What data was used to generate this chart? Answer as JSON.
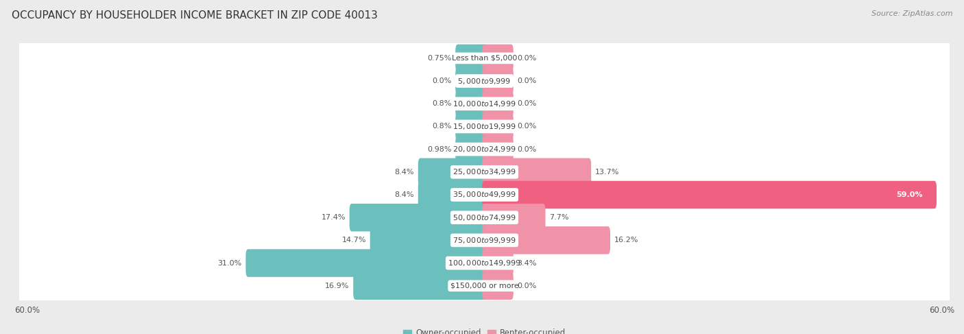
{
  "title": "OCCUPANCY BY HOUSEHOLDER INCOME BRACKET IN ZIP CODE 40013",
  "source": "Source: ZipAtlas.com",
  "categories": [
    "Less than $5,000",
    "$5,000 to $9,999",
    "$10,000 to $14,999",
    "$15,000 to $19,999",
    "$20,000 to $24,999",
    "$25,000 to $34,999",
    "$35,000 to $49,999",
    "$50,000 to $74,999",
    "$75,000 to $99,999",
    "$100,000 to $149,999",
    "$150,000 or more"
  ],
  "owner_values": [
    0.75,
    0.0,
    0.8,
    0.8,
    0.98,
    8.4,
    8.4,
    17.4,
    14.7,
    31.0,
    16.9
  ],
  "renter_values": [
    0.0,
    0.0,
    0.0,
    0.0,
    0.0,
    13.7,
    59.0,
    7.7,
    16.2,
    3.4,
    0.0
  ],
  "owner_color": "#6BBFBC",
  "renter_color": "#F093A8",
  "renter_color_bright": "#F06080",
  "axis_max": 60.0,
  "min_bar": 3.5,
  "title_fontsize": 11,
  "source_fontsize": 8,
  "label_fontsize": 8,
  "category_fontsize": 8,
  "legend_fontsize": 8.5,
  "bottom_label": "60.0%",
  "figsize": [
    14.06,
    4.87
  ],
  "row_bg": "#ffffff",
  "fig_bg": "#ebebeb",
  "gap_color": "#dedede"
}
